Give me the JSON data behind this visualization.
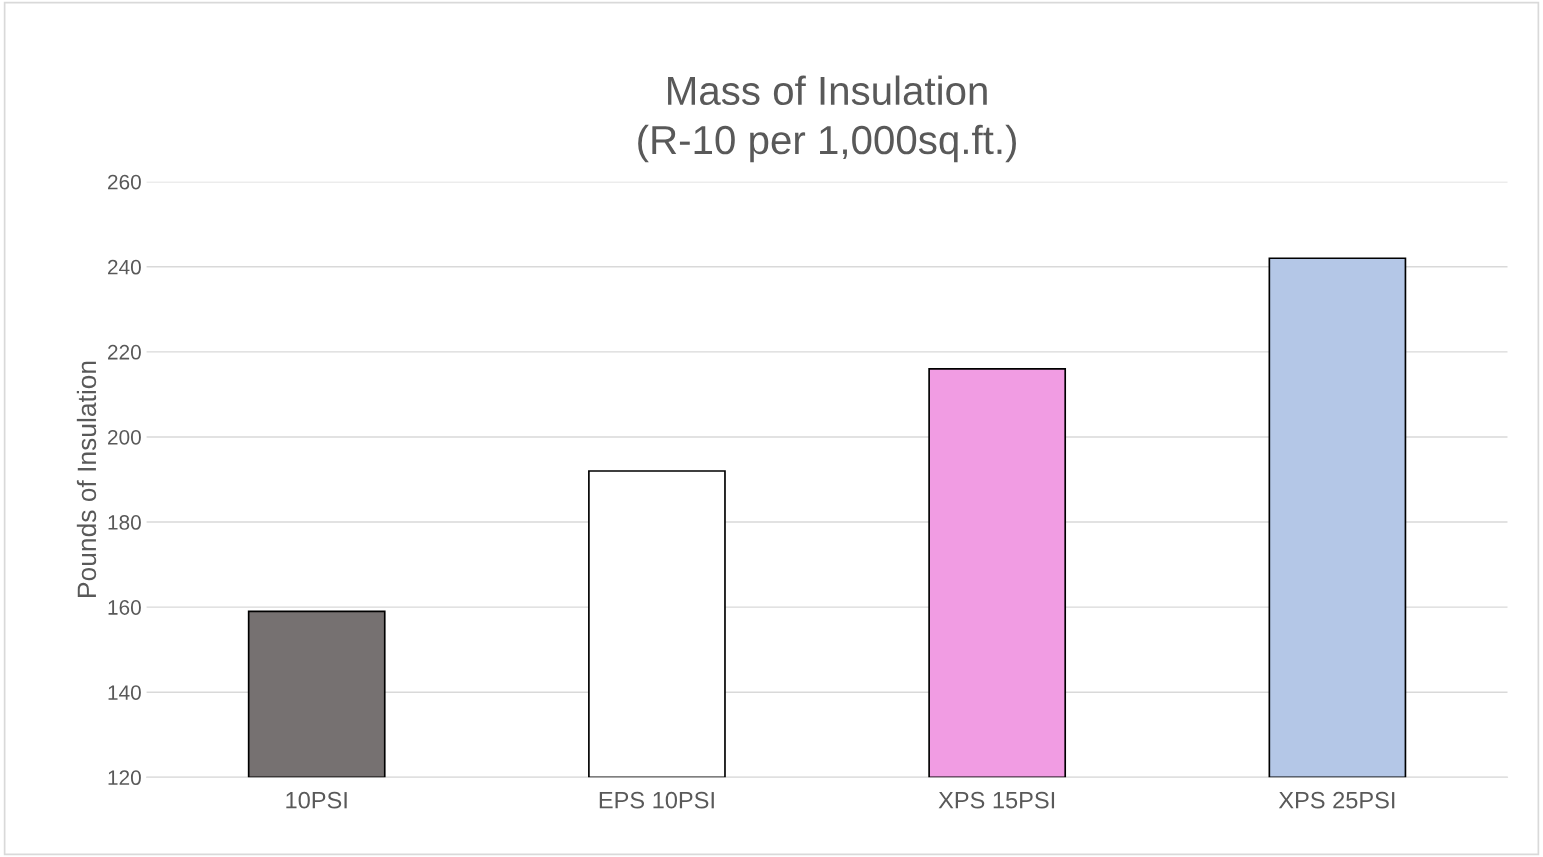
{
  "chart_data": {
    "type": "bar",
    "title": "Mass of Insulation\n(R-10 per 1,000sq.ft.)",
    "ylabel": "Pounds of Insulation",
    "categories": [
      "10PSI",
      "EPS 10PSI",
      "XPS 15PSI",
      "XPS 25PSI"
    ],
    "values": [
      159,
      192,
      216,
      242
    ],
    "colors": [
      "#767171",
      "#ffffff",
      "#f19ce3",
      "#b4c7e7"
    ],
    "ylim": [
      120,
      260
    ],
    "yticks": [
      120,
      140,
      160,
      180,
      200,
      220,
      240,
      260
    ],
    "grid": "y",
    "legend": false
  }
}
